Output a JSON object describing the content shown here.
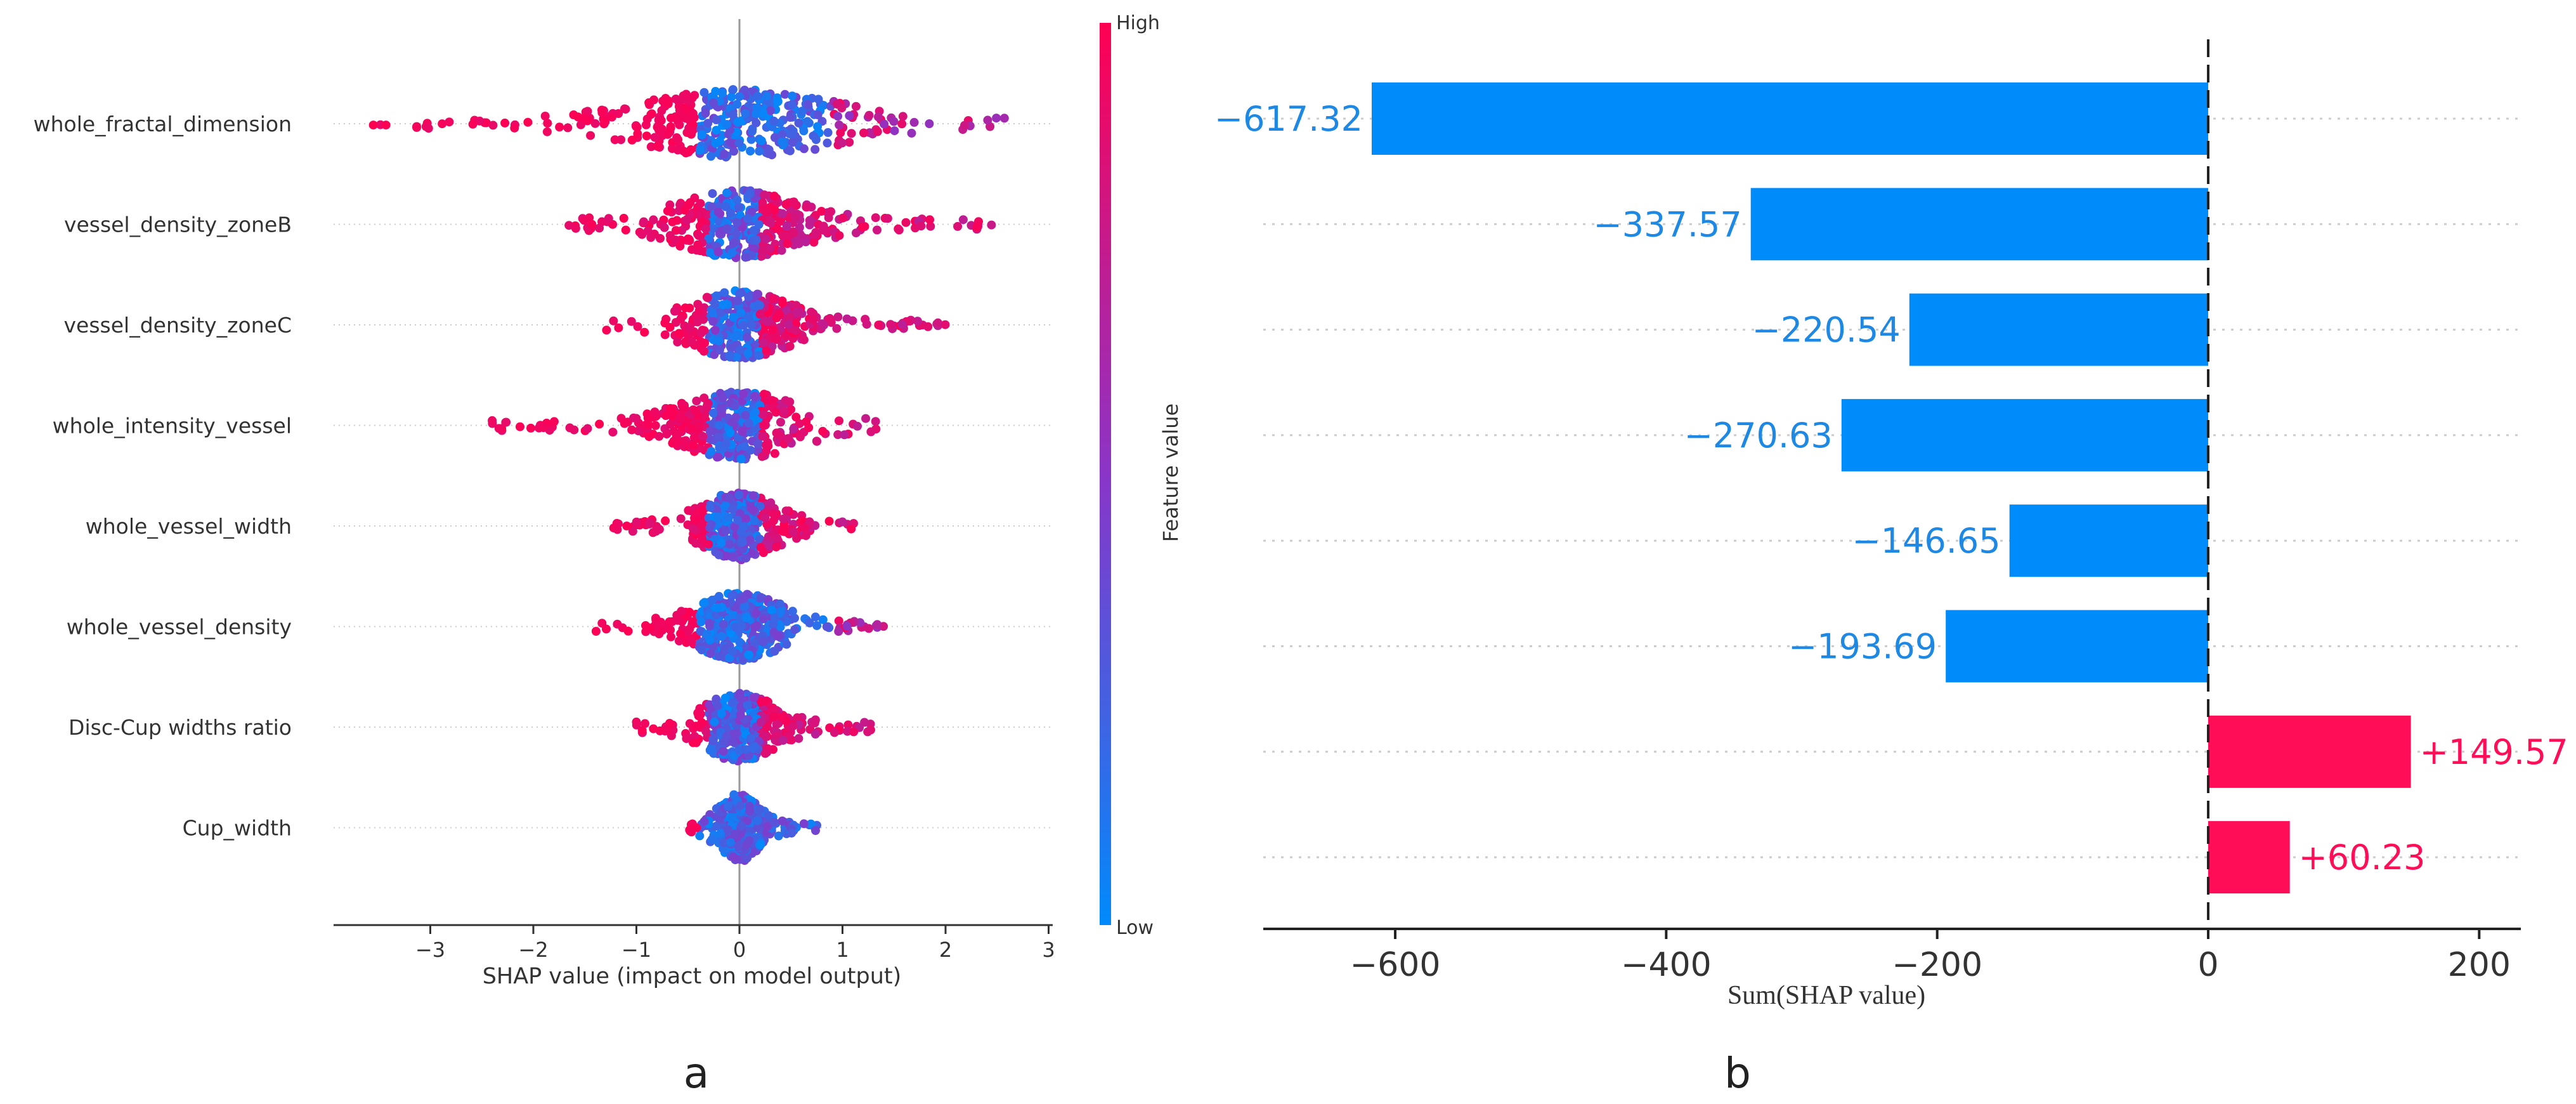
{
  "panel_labels": [
    "a",
    "b"
  ],
  "colors": {
    "high": "#ff0d57",
    "low": "#1e88e5",
    "axis": "#333333",
    "grid": "#cccccc",
    "text": "#333333"
  },
  "chart_data": [
    {
      "type": "scatter",
      "subtype": "shap-beeswarm",
      "title": "",
      "xlabel": "SHAP value (impact on model output)",
      "ylabel": "",
      "xlim": [
        -4.0,
        3.05
      ],
      "xticks": [
        -3,
        -2,
        -1,
        0,
        1,
        2,
        3
      ],
      "xtick_labels": [
        "−3",
        "−2",
        "−1",
        "0",
        "1",
        "2",
        "3"
      ],
      "features": [
        "whole_fractal_dimension",
        "vessel_density_zoneB",
        "vessel_density_zoneC",
        "whole_intensity_vessel",
        "whole_vessel_width",
        "whole_vessel_density",
        "Disc-Cup widths ratio",
        "Cup_width"
      ],
      "spread": [
        [
          -3.6,
          2.75
        ],
        [
          -1.7,
          2.5
        ],
        [
          -1.3,
          2.0
        ],
        [
          -2.4,
          1.45
        ],
        [
          -1.25,
          1.2
        ],
        [
          -1.4,
          1.4
        ],
        [
          -1.0,
          1.35
        ],
        [
          -0.5,
          0.8
        ]
      ],
      "colorbar": {
        "label": "Feature value",
        "high": "High",
        "low": "Low"
      },
      "legend": "colorbar right"
    },
    {
      "type": "bar",
      "orientation": "horizontal",
      "title": "",
      "xlabel": "Sum(SHAP value)",
      "ylabel": "",
      "xlim": [
        -700,
        230
      ],
      "xticks": [
        -600,
        -400,
        -200,
        0,
        200
      ],
      "xtick_labels": [
        "−600",
        "−400",
        "−200",
        "0",
        "200"
      ],
      "values": [
        -617.32,
        -337.57,
        -220.54,
        -270.63,
        -146.65,
        -193.69,
        149.57,
        60.23
      ],
      "labels": [
        "−617.32",
        "−337.57",
        "−220.54",
        "−270.63",
        "−146.65",
        "−193.69",
        "+149.57",
        "+60.23"
      ]
    }
  ]
}
